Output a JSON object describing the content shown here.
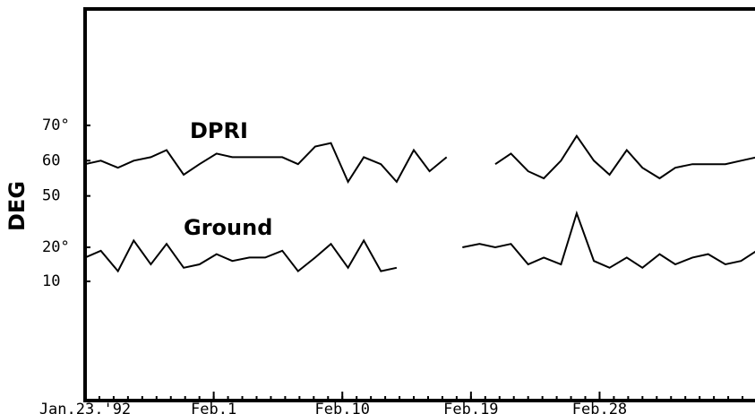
{
  "chart_data": {
    "type": "line",
    "ylabel": "DEG",
    "x": [
      0,
      1.1,
      2.3,
      3.4,
      4.6,
      5.7,
      6.9,
      8.0,
      9.2,
      10.3,
      11.5,
      12.6,
      13.8,
      14.9,
      16.1,
      17.2,
      18.4,
      19.5,
      20.7,
      21.8,
      23.0,
      24.1,
      25.3,
      26.4,
      27.6,
      28.7,
      29.8,
      31.0,
      32.1,
      33.3,
      34.4,
      35.6,
      36.7,
      37.9,
      39.0,
      40.2,
      41.3,
      42.5,
      43.6,
      44.8,
      45.9,
      47.0
    ],
    "xlim": [
      0,
      47
    ],
    "xticks": [
      {
        "value": 0,
        "label": "Jan.23,'92"
      },
      {
        "value": 9,
        "label": "Feb.1"
      },
      {
        "value": 18,
        "label": "Feb.10"
      },
      {
        "value": 27,
        "label": "Feb.19"
      },
      {
        "value": 36,
        "label": "Feb.28"
      }
    ],
    "ylim": [
      -8,
      103
    ],
    "yticks": [
      50,
      60,
      {
        "value": 70,
        "label": "70°"
      }
    ],
    "y2lim": [
      -25,
      90
    ],
    "y2ticks": [
      10,
      {
        "value": 20,
        "label": "20°"
      }
    ],
    "series": [
      {
        "name": "DPRI",
        "color": "#000000",
        "values": [
          59,
          60,
          58,
          60,
          61,
          63,
          56,
          59,
          62,
          61,
          61,
          61,
          61,
          59,
          64,
          65,
          54,
          61,
          59,
          54,
          63,
          57,
          61,
          null,
          null,
          59,
          62,
          57,
          55,
          60,
          67,
          60,
          56,
          63,
          58,
          55,
          58,
          59,
          59,
          59,
          60,
          61
        ]
      },
      {
        "name": "Ground",
        "color": "#000000",
        "axis": "y2",
        "values": [
          17,
          19,
          13,
          22,
          15,
          21,
          14,
          15,
          18,
          16,
          17,
          17,
          19,
          13,
          17,
          21,
          14,
          22,
          13,
          14,
          null,
          null,
          null,
          20,
          21,
          20,
          21,
          15,
          17,
          15,
          30,
          16,
          14,
          17,
          14,
          18,
          15,
          17,
          18,
          15,
          16,
          19
        ]
      }
    ]
  }
}
